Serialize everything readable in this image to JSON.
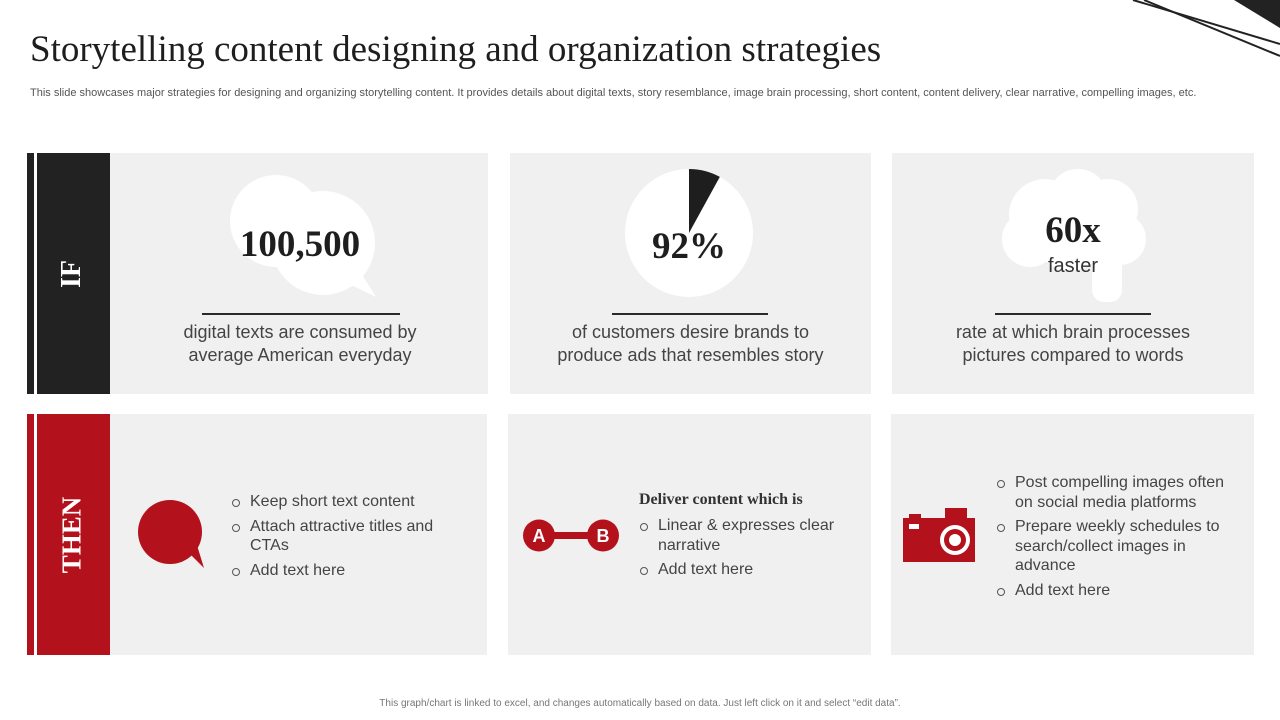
{
  "slide": {
    "title": "Storytelling content designing and organization strategies",
    "subtitle": "This slide showcases major strategies for designing and organizing storytelling content. It provides details about digital texts, story resemblance, image brain processing, short content, content delivery, clear narrative, compelling images, etc.",
    "footer": "This graph/chart is linked to excel, and changes automatically based on data. Just left click on it and select “edit data”."
  },
  "if_row": {
    "label": "IF",
    "cards": [
      {
        "stat": "100,500",
        "description": [
          "digital texts are consumed by",
          "average American everyday"
        ],
        "icon": "speech-bubbles-icon"
      },
      {
        "stat": "92%",
        "description": [
          "of customers desire brands to",
          "produce ads that resembles story"
        ],
        "icon": "pie-icon",
        "pie_fraction": 0.08
      },
      {
        "stat": "60x",
        "stat_suffix": "faster",
        "description": [
          "rate at which brain processes",
          "pictures compared to words"
        ],
        "icon": "brain-icon"
      }
    ]
  },
  "then_row": {
    "label": "THEN",
    "cards": [
      {
        "icon": "chat-bubble-icon",
        "bullets": [
          "Keep short text content",
          "Attach attractive titles and CTAs",
          "Add text here"
        ]
      },
      {
        "icon": "a-to-b-icon",
        "icon_labels": [
          "A",
          "B"
        ],
        "heading": "Deliver content which is",
        "bullets": [
          "Linear & expresses clear narrative",
          "Add text here"
        ]
      },
      {
        "icon": "camera-icon",
        "bullets": [
          "Post compelling images often on social media platforms",
          "Prepare weekly schedules to search/collect images in advance",
          "Add text here"
        ]
      }
    ]
  },
  "colors": {
    "dark": "#222222",
    "accent_red": "#b3121d",
    "panel_bg": "#f0f0f0",
    "text": "#444444"
  }
}
